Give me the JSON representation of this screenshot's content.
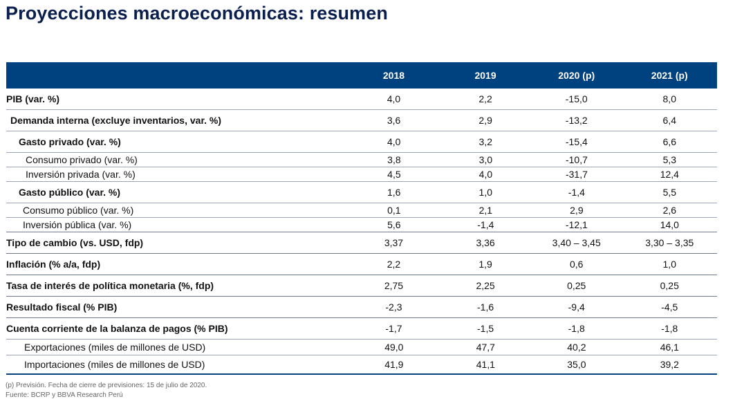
{
  "title": "Proyecciones macroeconómicas: resumen",
  "table": {
    "headers": [
      "",
      "2018",
      "2019",
      "2020 (p)",
      "2021 (p)"
    ],
    "rows": [
      {
        "label": "PIB (var. %)",
        "values": [
          "4,0",
          "2,2",
          "-15,0",
          "8,0"
        ],
        "bold": true,
        "indent": 0,
        "height": 30,
        "major": false
      },
      {
        "label": "Demanda interna (excluye inventarios, var. %)",
        "values": [
          "3,6",
          "2,9",
          "-13,2",
          "6,4"
        ],
        "bold": true,
        "indent": 6,
        "height": 30,
        "major": false
      },
      {
        "label": "Gasto privado (var. %)",
        "values": [
          "4,0",
          "3,2",
          "-15,4",
          "6,6"
        ],
        "bold": true,
        "indent": 18,
        "height": 30,
        "major": false
      },
      {
        "label": "Consumo privado (var. %)",
        "values": [
          "3,8",
          "3,0",
          "-10,7",
          "5,3"
        ],
        "bold": false,
        "indent": 28,
        "height": 20,
        "major": false
      },
      {
        "label": "Inversión privada (var. %)",
        "values": [
          "4,5",
          "4,0",
          "-31,7",
          "12,4"
        ],
        "bold": false,
        "indent": 28,
        "height": 20,
        "major": false
      },
      {
        "label": "Gasto público (var. %)",
        "values": [
          "1,6",
          "1,0",
          "-1,4",
          "5,5"
        ],
        "bold": true,
        "indent": 18,
        "height": 30,
        "major": false
      },
      {
        "label": "Consumo público (var. %)",
        "values": [
          "0,1",
          "2,1",
          "2,9",
          "2,6"
        ],
        "bold": false,
        "indent": 24,
        "height": 20,
        "major": false
      },
      {
        "label": "Inversión pública (var. %)",
        "values": [
          "5,6",
          "-1,4",
          "-12,1",
          "14,0"
        ],
        "bold": false,
        "indent": 24,
        "height": 20,
        "major": false
      },
      {
        "label": "Tipo de cambio (vs. USD, fdp)",
        "values": [
          "3,37",
          "3,36",
          "3,40 – 3,45",
          "3,30 – 3,35"
        ],
        "bold": true,
        "indent": 0,
        "height": 30,
        "major": true
      },
      {
        "label": "Inflación (% a/a, fdp)",
        "values": [
          "2,2",
          "1,9",
          "0,6",
          "1,0"
        ],
        "bold": true,
        "indent": 0,
        "height": 30,
        "major": true
      },
      {
        "label": "Tasa de interés de política monetaria (%, fdp)",
        "values": [
          "2,75",
          "2,25",
          "0,25",
          "0,25"
        ],
        "bold": true,
        "indent": 0,
        "height": 30,
        "major": true
      },
      {
        "label": "Resultado fiscal (% PIB)",
        "values": [
          "-2,3",
          "-1,6",
          "-9,4",
          "-4,5"
        ],
        "bold": true,
        "indent": 0,
        "height": 30,
        "major": true
      },
      {
        "label": "Cuenta corriente de la balanza de pagos (% PIB)",
        "values": [
          "-1,7",
          "-1,5",
          "-1,8",
          "-1,8"
        ],
        "bold": true,
        "indent": 0,
        "height": 30,
        "major": true
      },
      {
        "label": "Exportaciones (miles de millones de USD)",
        "values": [
          "49,0",
          "47,7",
          "40,2",
          "46,1"
        ],
        "bold": false,
        "indent": 26,
        "height": 22,
        "major": false
      },
      {
        "label": "Importaciones (miles de millones de USD)",
        "values": [
          "41,9",
          "41,1",
          "35,0",
          "39,2"
        ],
        "bold": false,
        "indent": 26,
        "height": 26,
        "major": false
      }
    ]
  },
  "footnotes": {
    "note": "(p) Previsión. Fecha de cierre de previsiones: 15 de julio de 2020.",
    "source": "Fuente: BCRP y BBVA Research Perú"
  },
  "colors": {
    "header_bg": "#00417f",
    "title": "#0b1f4f"
  }
}
